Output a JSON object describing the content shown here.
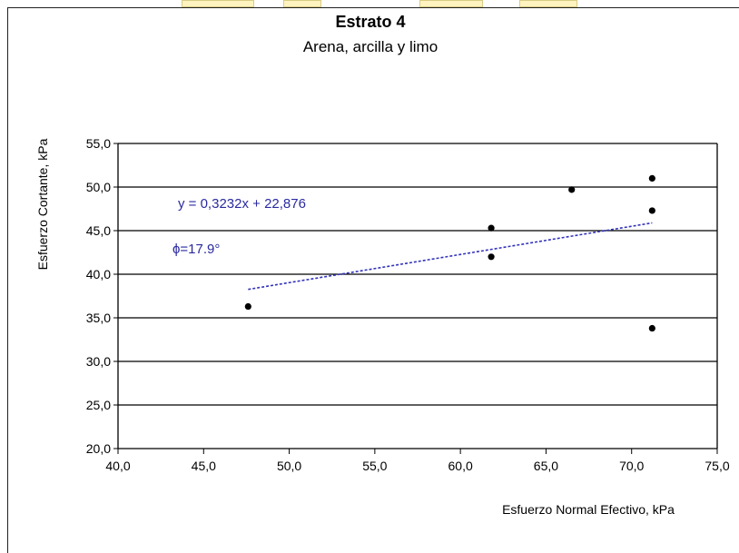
{
  "chart_data": {
    "type": "scatter",
    "title": "Estrato 4",
    "subtitle": "Arena, arcilla y limo",
    "xlabel": "Esfuerzo Normal Efectivo, kPa",
    "ylabel": "Esfuerzo Cortante, kPa",
    "xlim": [
      40,
      75
    ],
    "ylim": [
      20,
      55
    ],
    "x_ticks": [
      "40,0",
      "45,0",
      "50,0",
      "55,0",
      "60,0",
      "65,0",
      "70,0",
      "75,0"
    ],
    "y_ticks": [
      "20,0",
      "25,0",
      "30,0",
      "35,0",
      "40,0",
      "45,0",
      "50,0",
      "55,0"
    ],
    "grid": "horizontal",
    "series": [
      {
        "points": [
          {
            "x": 47.6,
            "y": 36.3
          },
          {
            "x": 61.8,
            "y": 45.3
          },
          {
            "x": 61.8,
            "y": 42.0
          },
          {
            "x": 66.5,
            "y": 49.7
          },
          {
            "x": 71.2,
            "y": 51.0
          },
          {
            "x": 71.2,
            "y": 47.3
          },
          {
            "x": 71.2,
            "y": 33.8
          }
        ]
      }
    ],
    "trendline": {
      "slope": 0.3232,
      "intercept": 22.876,
      "x_range": [
        47.6,
        71.2
      ],
      "color": "#3333bb"
    },
    "annotations": {
      "equation": "y = 0,3232x + 22,876",
      "phi": "ϕ=17.9°"
    }
  }
}
